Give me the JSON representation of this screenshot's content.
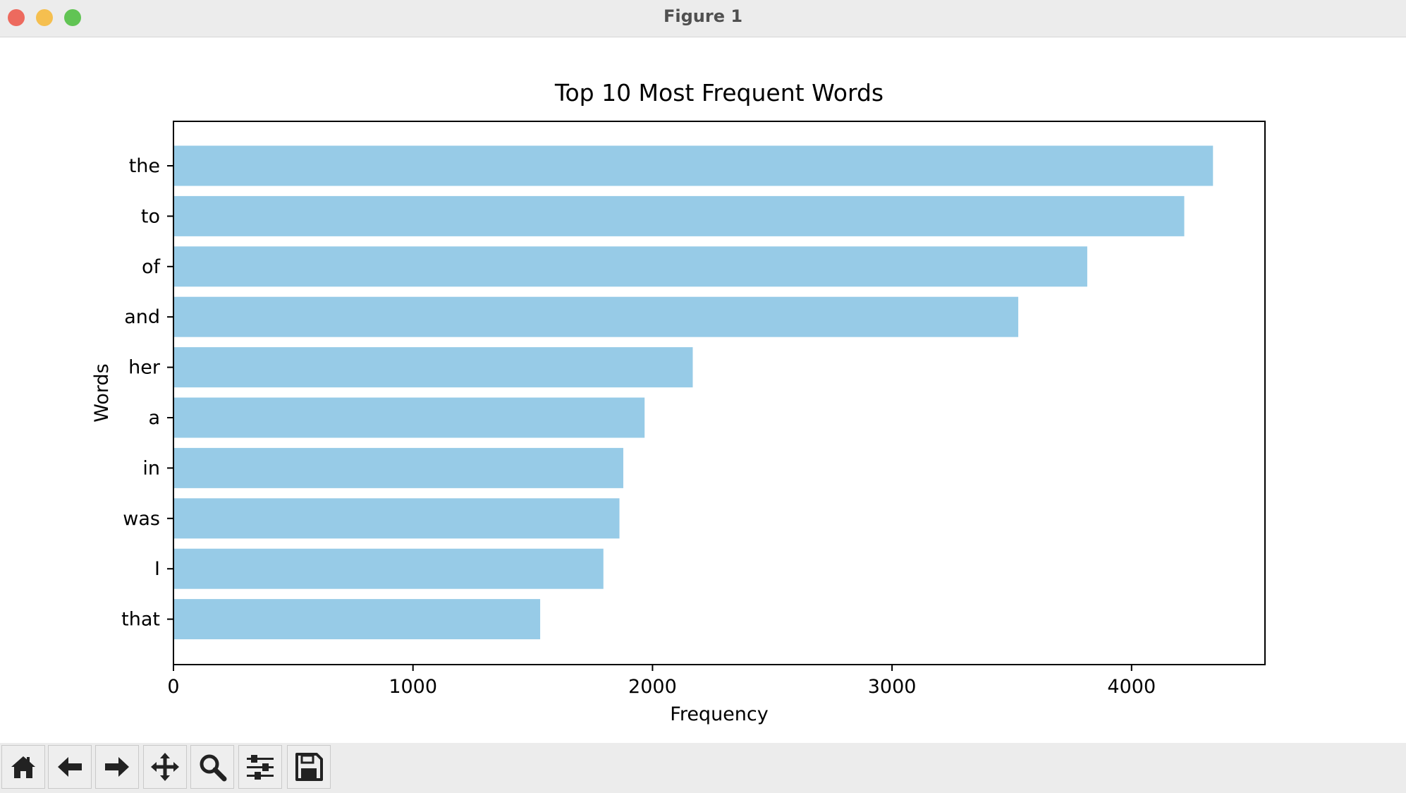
{
  "window": {
    "title": "Figure 1",
    "traffic_lights": [
      {
        "name": "close",
        "color": "#ed6a5e"
      },
      {
        "name": "minimize",
        "color": "#f5bf4f"
      },
      {
        "name": "maximize",
        "color": "#61c454"
      }
    ]
  },
  "chart_data": {
    "type": "bar",
    "orientation": "horizontal",
    "title": "Top 10 Most Frequent Words",
    "xlabel": "Frequency",
    "ylabel": "Words",
    "categories": [
      "the",
      "to",
      "of",
      "and",
      "her",
      "a",
      "in",
      "was",
      "I",
      "that"
    ],
    "values": [
      4340,
      4220,
      3815,
      3527,
      2168,
      1967,
      1878,
      1862,
      1795,
      1531
    ],
    "xlim": [
      0,
      4557
    ],
    "xticks": [
      0,
      1000,
      2000,
      3000,
      4000
    ],
    "grid": false,
    "bar_color": "#97cbe7"
  },
  "toolbar": {
    "buttons": [
      {
        "name": "home-button",
        "icon": "home-icon"
      },
      {
        "name": "back-button",
        "icon": "arrow-left-icon"
      },
      {
        "name": "forward-button",
        "icon": "arrow-right-icon"
      },
      {
        "name": "pan-button",
        "icon": "move-icon"
      },
      {
        "name": "zoom-button",
        "icon": "magnifier-icon"
      },
      {
        "name": "configure-subplots-button",
        "icon": "sliders-icon"
      },
      {
        "name": "save-button",
        "icon": "floppy-disk-icon"
      }
    ]
  }
}
